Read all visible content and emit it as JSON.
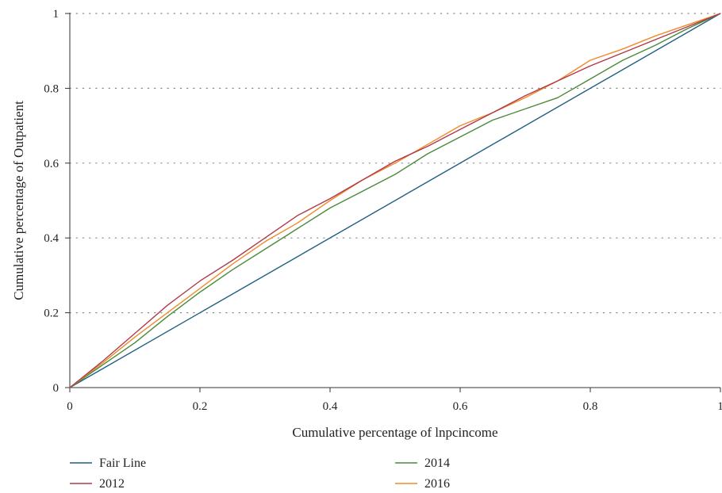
{
  "chart_data": {
    "type": "line",
    "xlabel": "Cumulative percentage of lnpcincome",
    "ylabel": "Cumulative percentage of Outpatient",
    "xlim": [
      0,
      1
    ],
    "ylim": [
      0,
      1
    ],
    "x_ticks": [
      "0",
      "0.2",
      "0.4",
      "0.6",
      "0.8",
      "1"
    ],
    "y_ticks": [
      "0",
      "0.2",
      "0.4",
      "0.6",
      "0.8",
      "1"
    ],
    "grid": "horizontal dotted",
    "legend_position": "bottom",
    "series": [
      {
        "name": "Fair Line",
        "color": "#1f5f82",
        "x": [
          0,
          1
        ],
        "y": [
          0,
          1
        ]
      },
      {
        "name": "2014",
        "color": "#4a8a3a",
        "x": [
          0,
          0.05,
          0.1,
          0.15,
          0.2,
          0.25,
          0.3,
          0.35,
          0.4,
          0.45,
          0.5,
          0.55,
          0.6,
          0.65,
          0.7,
          0.75,
          0.8,
          0.85,
          0.9,
          0.95,
          1
        ],
        "y": [
          0,
          0.06,
          0.12,
          0.19,
          0.255,
          0.315,
          0.37,
          0.425,
          0.48,
          0.525,
          0.57,
          0.625,
          0.67,
          0.715,
          0.745,
          0.775,
          0.825,
          0.875,
          0.915,
          0.96,
          1
        ]
      },
      {
        "name": "2012",
        "color": "#b03a4a",
        "x": [
          0,
          0.05,
          0.1,
          0.15,
          0.2,
          0.25,
          0.3,
          0.35,
          0.4,
          0.45,
          0.5,
          0.55,
          0.6,
          0.65,
          0.7,
          0.75,
          0.8,
          0.85,
          0.9,
          0.95,
          1
        ],
        "y": [
          0,
          0.07,
          0.145,
          0.22,
          0.285,
          0.34,
          0.4,
          0.46,
          0.505,
          0.555,
          0.605,
          0.645,
          0.69,
          0.735,
          0.78,
          0.82,
          0.86,
          0.895,
          0.93,
          0.965,
          1
        ]
      },
      {
        "name": "2016",
        "color": "#f08a2a",
        "x": [
          0,
          0.05,
          0.1,
          0.15,
          0.2,
          0.25,
          0.3,
          0.35,
          0.4,
          0.45,
          0.5,
          0.55,
          0.6,
          0.65,
          0.7,
          0.75,
          0.8,
          0.85,
          0.9,
          0.95,
          1
        ],
        "y": [
          0,
          0.065,
          0.135,
          0.2,
          0.265,
          0.33,
          0.39,
          0.44,
          0.5,
          0.555,
          0.6,
          0.65,
          0.7,
          0.735,
          0.775,
          0.82,
          0.875,
          0.905,
          0.94,
          0.97,
          1
        ]
      }
    ]
  }
}
